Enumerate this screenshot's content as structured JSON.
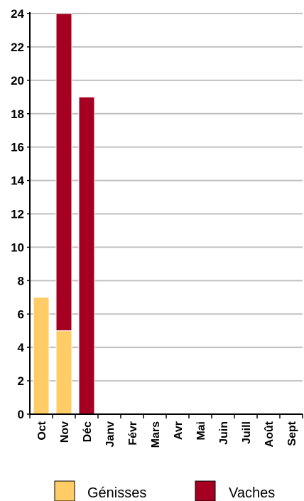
{
  "chart_data": {
    "type": "bar",
    "stacked": true,
    "categories": [
      "Oct",
      "Nov",
      "Déc",
      "Janv",
      "Févr",
      "Mars",
      "Avr",
      "Mai",
      "Juin",
      "Juill",
      "Août",
      "Sept"
    ],
    "series": [
      {
        "name": "Génisses",
        "color": "#FFCC66",
        "values": [
          7,
          5,
          0,
          0,
          0,
          0,
          0,
          0,
          0,
          0,
          0,
          0
        ]
      },
      {
        "name": "Vaches",
        "color": "#A50021",
        "values": [
          0,
          19,
          19,
          0,
          0,
          0,
          0,
          0,
          0,
          0,
          0,
          0
        ]
      }
    ],
    "ylim": [
      0,
      24
    ],
    "yticks": [
      0,
      2,
      4,
      6,
      8,
      10,
      12,
      14,
      16,
      18,
      20,
      22,
      24
    ],
    "grid": true,
    "legend_position": "bottom",
    "title": "",
    "xlabel": "",
    "ylabel": ""
  }
}
